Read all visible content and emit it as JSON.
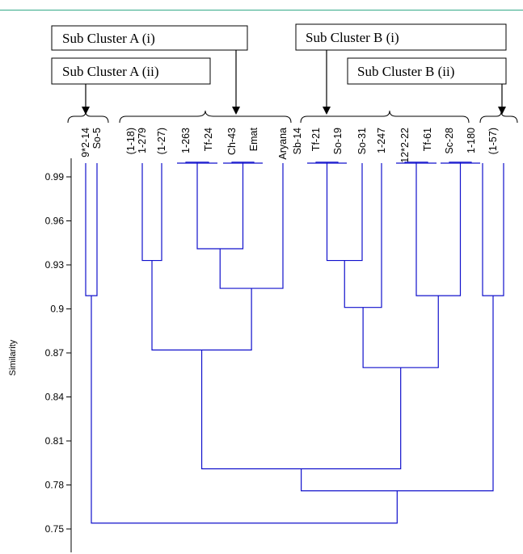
{
  "chart_data": {
    "type": "dendrogram",
    "ylabel": "Similarity",
    "ylim": [
      0.745,
      1.005
    ],
    "yticks": [
      "0.99",
      "0.96",
      "0.93",
      "0.9",
      "0.87",
      "0.84",
      "0.81",
      "0.78",
      "0.75"
    ],
    "leaves": [
      "9*2-14",
      "So-5",
      "(1-18)",
      "1-279",
      "(1-27)",
      "1-263",
      "Tf-24",
      "Ch-43",
      "Emat",
      "Aryana",
      "Sb-14",
      "Tf-21",
      "So-19",
      "So-31",
      "1-247",
      "12*2-22",
      "Tf-61",
      "Sc-28",
      "1-180",
      "(1-57)"
    ],
    "clusters": [
      {
        "name": "Sub Cluster A (i)",
        "members": [
          "(1-18)",
          "1-279",
          "(1-27)",
          "1-263",
          "Tf-24",
          "Ch-43",
          "Emat",
          "Aryana",
          "Sb-14"
        ]
      },
      {
        "name": "Sub Cluster A (ii)",
        "members": [
          "9*2-14",
          "So-5"
        ]
      },
      {
        "name": "Sub Cluster B (i)",
        "members": [
          "Tf-21",
          "So-19",
          "So-31",
          "1-247",
          "12*2-22",
          "Tf-61",
          "Sc-28",
          "1-180"
        ]
      },
      {
        "name": "Sub Cluster B (ii)",
        "members": [
          "(1-57)"
        ]
      }
    ],
    "merges": [
      {
        "a": "9*2-14",
        "b": "So-5",
        "similarity": 0.909
      },
      {
        "a": "1-279",
        "b": "(1-27)",
        "similarity": 0.933
      },
      {
        "a": "1-263",
        "b": "Tf-24",
        "similarity": 1.0
      },
      {
        "a": "Ch-43",
        "b": "Emat",
        "similarity": 1.0
      },
      {
        "a": "[1-263,Tf-24]",
        "b": "[Ch-43,Emat]",
        "similarity": 0.941
      },
      {
        "a": "[1-263..Emat]",
        "b": "Aryana",
        "similarity": 0.914
      },
      {
        "a": "[1-279,(1-27)]",
        "b": "[1-263..Aryana]",
        "similarity": 0.872
      },
      {
        "a": "Tf-21",
        "b": "So-19",
        "similarity": 1.0
      },
      {
        "a": "[Tf-21,So-19]",
        "b": "So-31",
        "similarity": 0.933
      },
      {
        "a": "[Tf-21..So-31]",
        "b": "1-247",
        "similarity": 0.901
      },
      {
        "a": "12*2-22",
        "b": "Tf-61",
        "similarity": 1.0
      },
      {
        "a": "Sc-28",
        "b": "1-180",
        "similarity": 1.0
      },
      {
        "a": "[12*2-22,Tf-61]",
        "b": "[Sc-28,1-180]",
        "similarity": 0.909
      },
      {
        "a": "[Tf-21..1-247]",
        "b": "[12*2-22..1-180]",
        "similarity": 0.86
      },
      {
        "a": "[1-279..Aryana]",
        "b": "[Tf-21..1-180]",
        "similarity": 0.791
      },
      {
        "a": "(1-57)",
        "b": "(1-57)",
        "similarity": 0.909
      },
      {
        "a": "[1-279..1-180]",
        "b": "(1-57)",
        "similarity": 0.776
      },
      {
        "a": "[9*2-14,So-5]",
        "b": "[1-279..(1-57)]",
        "similarity": 0.754
      }
    ]
  }
}
